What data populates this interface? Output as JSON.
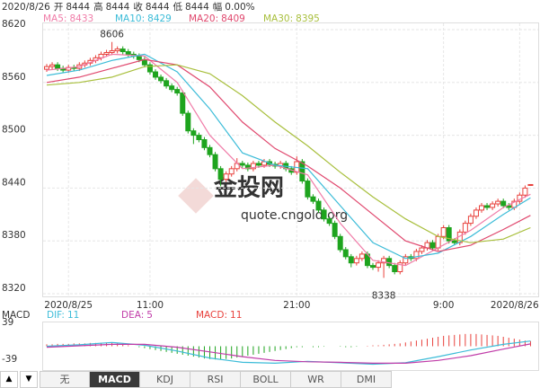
{
  "chart_data": [
    {
      "type": "candlestick",
      "info": {
        "date": "2020/8/26",
        "fields": [
          {
            "label": "开",
            "value": 8444
          },
          {
            "label": "高",
            "value": 8444
          },
          {
            "label": "收",
            "value": 8444
          },
          {
            "label": "低",
            "value": 8444
          },
          {
            "label": "幅",
            "value": 0,
            "value_label": "0.00%"
          }
        ]
      },
      "watermark": [
        "金投网",
        "quote.cngold.org"
      ],
      "categories": [
        null,
        null,
        null,
        null,
        "2020/8/25",
        null,
        null,
        null,
        null,
        null,
        null,
        null,
        null,
        null,
        null,
        null,
        null,
        null,
        null,
        "11:00",
        null,
        null,
        null,
        null,
        null,
        null,
        null,
        null,
        null,
        null,
        null,
        null,
        null,
        null,
        null,
        null,
        null,
        null,
        null,
        null,
        null,
        null,
        null,
        null,
        null,
        null,
        "21:00",
        null,
        null,
        null,
        null,
        null,
        null,
        null,
        null,
        null,
        null,
        null,
        null,
        null,
        null,
        null,
        null,
        null,
        null,
        null,
        null,
        null,
        null,
        null,
        null,
        null,
        null,
        "9:00",
        null,
        null,
        null,
        null,
        null,
        null,
        null,
        null,
        null,
        null,
        null,
        null,
        null,
        "2020/8/26",
        null,
        null
      ],
      "open": [
        8575,
        8578,
        8580,
        8576,
        8574,
        8577,
        8576,
        8580,
        8582,
        8585,
        8588,
        8592,
        8594,
        8596,
        8598,
        8595,
        8592,
        8590,
        8586,
        8580,
        8572,
        8566,
        8562,
        8556,
        8552,
        8548,
        8525,
        8505,
        8500,
        8495,
        8486,
        8478,
        8462,
        8450,
        8456,
        8462,
        8468,
        8466,
        8462,
        8468,
        8466,
        8470,
        8467,
        8465,
        8468,
        8462,
        8458,
        8470,
        8448,
        8430,
        8425,
        8415,
        8405,
        8400,
        8385,
        8370,
        8362,
        8355,
        8360,
        8365,
        8352,
        8350,
        8355,
        8360,
        8352,
        8345,
        8355,
        8362,
        8360,
        8368,
        8372,
        8378,
        8372,
        8385,
        8395,
        8380,
        8378,
        8390,
        8400,
        8408,
        8415,
        8420,
        8418,
        8422,
        8425,
        8420,
        8418,
        8425,
        8432,
        8444
      ],
      "high": [
        8581,
        8583,
        8583,
        8579,
        8580,
        8580,
        8583,
        8585,
        8588,
        8591,
        8595,
        8597,
        8606,
        8601,
        8601,
        8598,
        8595,
        8593,
        8589,
        8583,
        8575,
        8569,
        8565,
        8559,
        8555,
        8551,
        8528,
        8508,
        8503,
        8498,
        8489,
        8481,
        8465,
        8459,
        8465,
        8474,
        8471,
        8469,
        8471,
        8471,
        8473,
        8473,
        8470,
        8471,
        8471,
        8465,
        8476,
        8473,
        8451,
        8433,
        8428,
        8418,
        8408,
        8403,
        8388,
        8373,
        8365,
        8363,
        8368,
        8368,
        8355,
        8358,
        8363,
        8363,
        8355,
        8358,
        8365,
        8365,
        8371,
        8375,
        8381,
        8381,
        8388,
        8398,
        8398,
        8383,
        8393,
        8403,
        8411,
        8418,
        8423,
        8423,
        8425,
        8428,
        8428,
        8423,
        8428,
        8435,
        8443,
        8444
      ],
      "low": [
        8572,
        8575,
        8573,
        8571,
        8571,
        8573,
        8573,
        8577,
        8579,
        8582,
        8585,
        8589,
        8591,
        8593,
        8592,
        8589,
        8587,
        8583,
        8577,
        8569,
        8563,
        8559,
        8553,
        8549,
        8545,
        8522,
        8502,
        8490,
        8492,
        8483,
        8475,
        8459,
        8442,
        8447,
        8453,
        8459,
        8463,
        8459,
        8459,
        8463,
        8463,
        8464,
        8462,
        8462,
        8459,
        8455,
        8455,
        8445,
        8427,
        8422,
        8412,
        8402,
        8397,
        8382,
        8367,
        8359,
        8350,
        8352,
        8357,
        8349,
        8347,
        8345,
        8338,
        8349,
        8342,
        8342,
        8352,
        8357,
        8357,
        8365,
        8369,
        8369,
        8369,
        8382,
        8377,
        8375,
        8375,
        8387,
        8397,
        8405,
        8412,
        8415,
        8415,
        8419,
        8417,
        8415,
        8415,
        8422,
        8429,
        8444
      ],
      "close": [
        8578,
        8580,
        8576,
        8574,
        8577,
        8576,
        8580,
        8582,
        8585,
        8588,
        8592,
        8594,
        8596,
        8598,
        8595,
        8592,
        8590,
        8586,
        8580,
        8572,
        8566,
        8562,
        8556,
        8552,
        8548,
        8525,
        8505,
        8500,
        8495,
        8486,
        8478,
        8462,
        8450,
        8456,
        8462,
        8468,
        8466,
        8462,
        8468,
        8466,
        8470,
        8467,
        8465,
        8468,
        8462,
        8458,
        8470,
        8448,
        8430,
        8425,
        8415,
        8405,
        8400,
        8385,
        8370,
        8362,
        8355,
        8360,
        8365,
        8352,
        8350,
        8355,
        8360,
        8352,
        8345,
        8355,
        8362,
        8360,
        8368,
        8372,
        8378,
        8372,
        8385,
        8395,
        8380,
        8378,
        8390,
        8400,
        8408,
        8415,
        8420,
        8418,
        8422,
        8425,
        8420,
        8418,
        8425,
        8432,
        8440,
        8444
      ],
      "up_color": "#e8413c",
      "down_color": "#1ea41e",
      "mark_extremes": true,
      "series": [
        {
          "name": "MA5:",
          "last": 8433,
          "color": "#f07ca8",
          "x": [
            0,
            6,
            12,
            18,
            24,
            30,
            36,
            42,
            48,
            54,
            60,
            66,
            72,
            78,
            84,
            89
          ],
          "values": [
            8574,
            8578,
            8592,
            8590,
            8560,
            8500,
            8462,
            8466,
            8455,
            8400,
            8358,
            8352,
            8372,
            8392,
            8418,
            8433
          ]
        },
        {
          "name": "MA10:",
          "last": 8429,
          "color": "#3cbcd8",
          "x": [
            0,
            6,
            12,
            18,
            24,
            30,
            36,
            42,
            48,
            54,
            60,
            66,
            72,
            78,
            84,
            89
          ],
          "values": [
            8568,
            8574,
            8585,
            8592,
            8572,
            8530,
            8480,
            8466,
            8462,
            8420,
            8378,
            8360,
            8366,
            8385,
            8410,
            8429
          ]
        },
        {
          "name": "MA20:",
          "last": 8409,
          "color": "#e0486e",
          "x": [
            0,
            6,
            12,
            18,
            24,
            30,
            36,
            42,
            48,
            54,
            60,
            66,
            72,
            78,
            84,
            89
          ],
          "values": [
            8560,
            8566,
            8576,
            8586,
            8580,
            8555,
            8515,
            8485,
            8465,
            8440,
            8410,
            8380,
            8368,
            8375,
            8393,
            8409
          ]
        },
        {
          "name": "MA30:",
          "last": 8395,
          "color": "#a8bf3c",
          "x": [
            0,
            6,
            12,
            18,
            24,
            30,
            36,
            42,
            48,
            54,
            60,
            66,
            72,
            78,
            84,
            89
          ],
          "values": [
            8557,
            8560,
            8566,
            8578,
            8580,
            8570,
            8545,
            8515,
            8488,
            8458,
            8430,
            8405,
            8385,
            8378,
            8382,
            8395
          ]
        }
      ],
      "ylim": [
        8320,
        8620
      ],
      "yticks": [
        8320,
        8380,
        8440,
        8500,
        8560,
        8620
      ],
      "grid": true
    },
    {
      "type": "macd",
      "title": "MACD",
      "series": [
        {
          "name": "DIF:",
          "last": 11,
          "color": "#3cbcd8",
          "x": [
            0,
            6,
            12,
            18,
            24,
            30,
            36,
            42,
            48,
            54,
            60,
            66,
            72,
            78,
            84,
            89
          ],
          "values": [
            0,
            3,
            8,
            2,
            -10,
            -25,
            -34,
            -36,
            -32,
            -35,
            -38,
            -35,
            -22,
            -8,
            4,
            11
          ]
        },
        {
          "name": "DEA:",
          "last": 5,
          "color": "#c03ca8",
          "x": [
            0,
            6,
            12,
            18,
            24,
            30,
            36,
            42,
            48,
            54,
            60,
            66,
            72,
            78,
            84,
            89
          ],
          "values": [
            -2,
            1,
            4,
            4,
            -2,
            -12,
            -22,
            -30,
            -33,
            -34,
            -36,
            -36,
            -30,
            -20,
            -6,
            5
          ]
        }
      ],
      "histogram": {
        "name": "MACD:",
        "last": 11,
        "color": "#e8413c",
        "down_color": "#1ea41e",
        "values": [
          4,
          4,
          5,
          5,
          5,
          6,
          6,
          6,
          7,
          7,
          7,
          8,
          8,
          6,
          4,
          2,
          0,
          -2,
          -4,
          -6,
          -8,
          -10,
          -12,
          -14,
          -16,
          -18,
          -20,
          -22,
          -24,
          -26,
          -27,
          -28,
          -28,
          -27,
          -26,
          -24,
          -22,
          -20,
          -18,
          -16,
          -14,
          -12,
          -10,
          -8,
          -6,
          -4,
          -2,
          -2,
          0,
          -2,
          -2,
          -1,
          0,
          0,
          -1,
          -2,
          -2,
          -1,
          0,
          1,
          2,
          2,
          3,
          4,
          5,
          6,
          8,
          10,
          12,
          14,
          16,
          18,
          20,
          22,
          23,
          24,
          25,
          26,
          26,
          26,
          25,
          24,
          23,
          22,
          20,
          18,
          16,
          14,
          12,
          11
        ]
      },
      "ylim": [
        -39,
        39
      ],
      "yticks": [
        -39,
        39
      ]
    }
  ],
  "tabs": {
    "items": [
      "无",
      "MACD",
      "KDJ",
      "RSI",
      "BOLL",
      "WR",
      "DMI"
    ],
    "active": 1
  }
}
